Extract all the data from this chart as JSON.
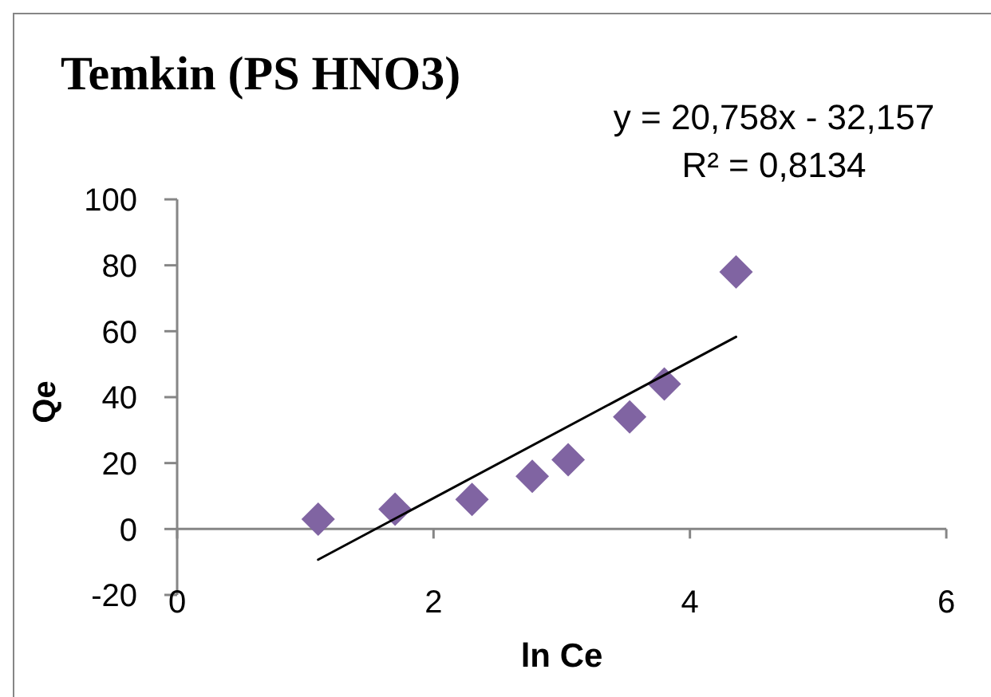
{
  "chart_data": {
    "type": "scatter",
    "title": "Temkin (PS HNO3)",
    "xlabel": "ln Ce",
    "ylabel": "Qe",
    "annotations": [
      "y = 20,758x - 32,157",
      "R² = 0,8134"
    ],
    "marker": "diamond",
    "series": [
      {
        "color": "#8064a2",
        "x": [
          1.1,
          1.7,
          2.3,
          2.77,
          3.05,
          3.53,
          3.8,
          4.36
        ],
        "values": [
          3,
          6,
          9,
          16,
          21,
          34,
          44,
          78
        ]
      },
      {
        "type": "line",
        "color": "#000000",
        "x": [
          1.1,
          4.36
        ],
        "values": [
          -9.3,
          58.3
        ],
        "marker": "none"
      }
    ],
    "xlim": [
      0,
      6
    ],
    "xticks": [
      0,
      2,
      4,
      6
    ],
    "ylim": [
      -20,
      100
    ],
    "yticks": [
      -20,
      0,
      20,
      40,
      60,
      80,
      100
    ]
  }
}
